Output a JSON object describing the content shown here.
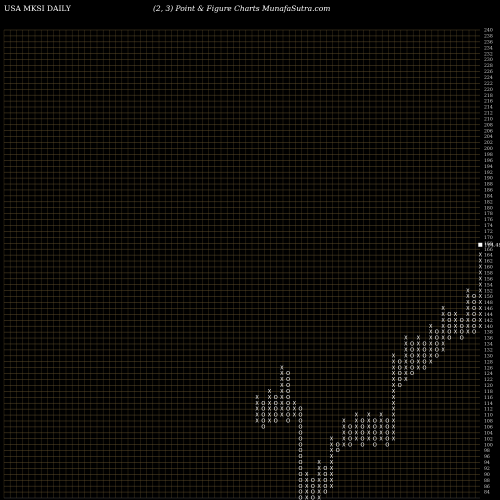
{
  "header": {
    "left": "USA MKSI DAILY",
    "right": "(2,  3) Point & Figure    Charts MunafaSutra.com"
  },
  "chart_data": {
    "type": "point_and_figure",
    "symbol": "MKSI",
    "box_size": 2,
    "reversal": 3,
    "ylim": [
      82,
      240
    ],
    "y_ticks": [
      84,
      86,
      88,
      90,
      92,
      94,
      96,
      98,
      100,
      102,
      104,
      106,
      108,
      110,
      112,
      114,
      116,
      118,
      120,
      122,
      124,
      126,
      128,
      130,
      132,
      134,
      136,
      138,
      140,
      142,
      144,
      146,
      148,
      150,
      152,
      154,
      156,
      158,
      160,
      162,
      164,
      166,
      168,
      170,
      172,
      174,
      176,
      178,
      180,
      182,
      184,
      186,
      188,
      190,
      192,
      194,
      196,
      198,
      200,
      202,
      204,
      206,
      208,
      210,
      212,
      214,
      216,
      218,
      220,
      222,
      224,
      226,
      228,
      230,
      232,
      234,
      236,
      238,
      240
    ],
    "last_price": "164.49",
    "last_price_value": 164.49,
    "columns": [
      {
        "type": "X",
        "low": 108,
        "high": 116
      },
      {
        "type": "O",
        "low": 106,
        "high": 114
      },
      {
        "type": "X",
        "low": 108,
        "high": 118
      },
      {
        "type": "O",
        "low": 108,
        "high": 116
      },
      {
        "type": "X",
        "low": 110,
        "high": 126
      },
      {
        "type": "O",
        "low": 108,
        "high": 124
      },
      {
        "type": "X",
        "low": 110,
        "high": 114
      },
      {
        "type": "O",
        "low": 80,
        "high": 112
      },
      {
        "type": "X",
        "low": 82,
        "high": 90
      },
      {
        "type": "O",
        "low": 76,
        "high": 88
      },
      {
        "type": "X",
        "low": 78,
        "high": 94
      },
      {
        "type": "O",
        "low": 84,
        "high": 92
      },
      {
        "type": "X",
        "low": 86,
        "high": 102
      },
      {
        "type": "O",
        "low": 98,
        "high": 100
      },
      {
        "type": "X",
        "low": 100,
        "high": 108
      },
      {
        "type": "O",
        "low": 100,
        "high": 106
      },
      {
        "type": "X",
        "low": 102,
        "high": 110
      },
      {
        "type": "O",
        "low": 100,
        "high": 108
      },
      {
        "type": "X",
        "low": 102,
        "high": 110
      },
      {
        "type": "O",
        "low": 100,
        "high": 108
      },
      {
        "type": "X",
        "low": 102,
        "high": 110
      },
      {
        "type": "O",
        "low": 100,
        "high": 108
      },
      {
        "type": "X",
        "low": 102,
        "high": 130
      },
      {
        "type": "O",
        "low": 120,
        "high": 128
      },
      {
        "type": "X",
        "low": 122,
        "high": 136
      },
      {
        "type": "O",
        "low": 124,
        "high": 134
      },
      {
        "type": "X",
        "low": 126,
        "high": 136
      },
      {
        "type": "O",
        "low": 126,
        "high": 134
      },
      {
        "type": "X",
        "low": 128,
        "high": 140
      },
      {
        "type": "O",
        "low": 130,
        "high": 138
      },
      {
        "type": "X",
        "low": 132,
        "high": 146
      },
      {
        "type": "O",
        "low": 136,
        "high": 144
      },
      {
        "type": "X",
        "low": 138,
        "high": 144
      },
      {
        "type": "O",
        "low": 136,
        "high": 142
      },
      {
        "type": "X",
        "low": 138,
        "high": 152
      },
      {
        "type": "O",
        "low": 138,
        "high": 150
      },
      {
        "type": "X",
        "low": 140,
        "high": 164
      }
    ],
    "colors": {
      "background": "#000000",
      "grid": "#6e5a32",
      "grid_lower": "#5a5a5a",
      "symbols": "#ffffff",
      "axis_text": "#cfcfcf"
    }
  }
}
